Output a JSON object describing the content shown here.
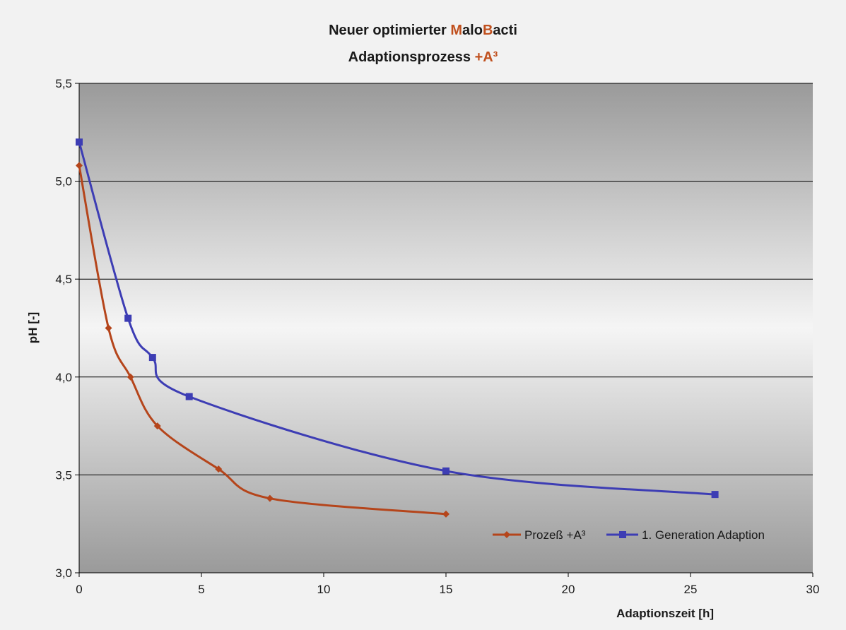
{
  "chart_data": {
    "type": "line",
    "title_line1": [
      "Neuer optimierter ",
      "M",
      "alo",
      "B",
      "acti"
    ],
    "title_line2": [
      "Adaptionsprozess ",
      "+A³"
    ],
    "xlabel": "Adaptionszeit [h]",
    "ylabel": "pH [-]",
    "xlim": [
      0,
      30
    ],
    "ylim": [
      3.0,
      5.5
    ],
    "xticks": [
      0,
      5,
      10,
      15,
      20,
      25,
      30
    ],
    "xtick_labels": [
      "0",
      "5",
      "10",
      "15",
      "20",
      "25",
      "30"
    ],
    "yticks": [
      3.0,
      3.5,
      4.0,
      4.5,
      5.0,
      5.5
    ],
    "ytick_labels": [
      "3,0",
      "3,5",
      "4,0",
      "4,5",
      "5,0",
      "5,5"
    ],
    "grid": "horizontal",
    "legend_position": "bottom-right",
    "series": [
      {
        "name": "Prozeß +A³",
        "color": "#b5451b",
        "marker": "diamond",
        "x": [
          0,
          1.2,
          2.1,
          3.2,
          5.7,
          7.8,
          15
        ],
        "y": [
          5.08,
          4.25,
          4.0,
          3.75,
          3.53,
          3.38,
          3.3
        ]
      },
      {
        "name": "1. Generation Adaption",
        "color": "#3d3db4",
        "marker": "square",
        "x": [
          0,
          2,
          3,
          4.5,
          15,
          26
        ],
        "y": [
          5.2,
          4.3,
          4.1,
          3.9,
          3.52,
          3.4
        ]
      }
    ]
  }
}
